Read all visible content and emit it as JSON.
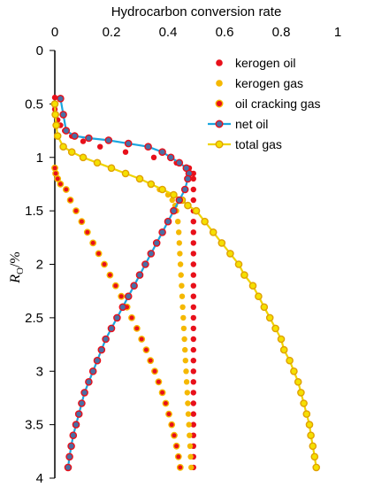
{
  "chart_data": {
    "type": "scatter",
    "title": "Hydrocarbon conversion rate",
    "ylabel": "Ro/%",
    "ylabel_parts": {
      "main": "R",
      "sub": "O",
      "unit": "/%"
    },
    "xlim": [
      0,
      1
    ],
    "ylim": [
      0,
      4
    ],
    "y_inverted": true,
    "x_axis_position": "top",
    "grid": false,
    "legend_position": "top-right",
    "xticks": [
      "0",
      "0.2",
      "0.4",
      "0.6",
      "0.8",
      "1"
    ],
    "yticks": [
      "0",
      "0.5",
      "1",
      "1.5",
      "2",
      "2.5",
      "3",
      "3.5",
      "4"
    ],
    "series": [
      {
        "name": "kerogen oil",
        "style": "markers",
        "marker_fill": "#e8101a",
        "marker_stroke": "#e8101a",
        "points": [
          [
            0.0,
            0.44
          ],
          [
            0.0,
            0.5
          ],
          [
            0.0,
            0.55
          ],
          [
            0.005,
            0.6
          ],
          [
            0.01,
            0.65
          ],
          [
            0.02,
            0.7
          ],
          [
            0.035,
            0.75
          ],
          [
            0.06,
            0.8
          ],
          [
            0.1,
            0.85
          ],
          [
            0.16,
            0.9
          ],
          [
            0.25,
            0.95
          ],
          [
            0.35,
            1.0
          ],
          [
            0.43,
            1.05
          ],
          [
            0.475,
            1.1
          ],
          [
            0.49,
            1.15
          ],
          [
            0.49,
            1.2
          ],
          [
            0.49,
            1.3
          ],
          [
            0.49,
            1.4
          ],
          [
            0.49,
            1.5
          ],
          [
            0.49,
            1.6
          ],
          [
            0.49,
            1.7
          ],
          [
            0.49,
            1.8
          ],
          [
            0.49,
            1.9
          ],
          [
            0.49,
            2.0
          ],
          [
            0.49,
            2.1
          ],
          [
            0.49,
            2.2
          ],
          [
            0.49,
            2.3
          ],
          [
            0.49,
            2.4
          ],
          [
            0.49,
            2.5
          ],
          [
            0.49,
            2.6
          ],
          [
            0.49,
            2.7
          ],
          [
            0.49,
            2.8
          ],
          [
            0.49,
            2.9
          ],
          [
            0.49,
            3.0
          ],
          [
            0.49,
            3.1
          ],
          [
            0.49,
            3.2
          ],
          [
            0.49,
            3.3
          ],
          [
            0.49,
            3.4
          ],
          [
            0.49,
            3.5
          ],
          [
            0.49,
            3.6
          ],
          [
            0.49,
            3.7
          ],
          [
            0.49,
            3.8
          ],
          [
            0.49,
            3.9
          ]
        ]
      },
      {
        "name": "kerogen gas",
        "style": "markers",
        "marker_fill": "#f5b800",
        "marker_stroke": "#f5b800",
        "points": [
          [
            0.0,
            0.5
          ],
          [
            0.002,
            0.6
          ],
          [
            0.005,
            0.7
          ],
          [
            0.01,
            0.8
          ],
          [
            0.03,
            0.9
          ],
          [
            0.06,
            0.95
          ],
          [
            0.1,
            1.0
          ],
          [
            0.15,
            1.05
          ],
          [
            0.2,
            1.1
          ],
          [
            0.25,
            1.15
          ],
          [
            0.3,
            1.2
          ],
          [
            0.34,
            1.25
          ],
          [
            0.37,
            1.3
          ],
          [
            0.4,
            1.35
          ],
          [
            0.415,
            1.4
          ],
          [
            0.425,
            1.45
          ],
          [
            0.43,
            1.5
          ],
          [
            0.435,
            1.6
          ],
          [
            0.438,
            1.7
          ],
          [
            0.44,
            1.8
          ],
          [
            0.442,
            1.9
          ],
          [
            0.444,
            2.0
          ],
          [
            0.446,
            2.1
          ],
          [
            0.448,
            2.2
          ],
          [
            0.45,
            2.3
          ],
          [
            0.452,
            2.4
          ],
          [
            0.454,
            2.5
          ],
          [
            0.456,
            2.6
          ],
          [
            0.458,
            2.7
          ],
          [
            0.46,
            2.8
          ],
          [
            0.462,
            2.9
          ],
          [
            0.464,
            3.0
          ],
          [
            0.466,
            3.1
          ],
          [
            0.468,
            3.2
          ],
          [
            0.47,
            3.3
          ],
          [
            0.472,
            3.4
          ],
          [
            0.474,
            3.5
          ],
          [
            0.476,
            3.6
          ],
          [
            0.478,
            3.7
          ],
          [
            0.48,
            3.8
          ],
          [
            0.482,
            3.9
          ]
        ]
      },
      {
        "name": "oil cracking gas",
        "style": "markers",
        "marker_fill": "#e8101a",
        "marker_stroke": "#f5b800",
        "points": [
          [
            0.0,
            1.1
          ],
          [
            0.003,
            1.15
          ],
          [
            0.01,
            1.2
          ],
          [
            0.02,
            1.25
          ],
          [
            0.04,
            1.3
          ],
          [
            0.055,
            1.4
          ],
          [
            0.075,
            1.5
          ],
          [
            0.095,
            1.6
          ],
          [
            0.115,
            1.7
          ],
          [
            0.135,
            1.8
          ],
          [
            0.155,
            1.9
          ],
          [
            0.175,
            2.0
          ],
          [
            0.195,
            2.1
          ],
          [
            0.215,
            2.2
          ],
          [
            0.235,
            2.3
          ],
          [
            0.255,
            2.4
          ],
          [
            0.272,
            2.5
          ],
          [
            0.29,
            2.6
          ],
          [
            0.307,
            2.7
          ],
          [
            0.323,
            2.8
          ],
          [
            0.338,
            2.9
          ],
          [
            0.353,
            3.0
          ],
          [
            0.367,
            3.1
          ],
          [
            0.38,
            3.2
          ],
          [
            0.392,
            3.3
          ],
          [
            0.403,
            3.4
          ],
          [
            0.413,
            3.5
          ],
          [
            0.422,
            3.6
          ],
          [
            0.43,
            3.7
          ],
          [
            0.437,
            3.8
          ],
          [
            0.443,
            3.9
          ]
        ]
      },
      {
        "name": "net oil",
        "style": "line+markers",
        "line_color": "#1aa6e0",
        "marker_fill": "#4a6fa5",
        "marker_stroke": "#e8101a",
        "points": [
          [
            0.02,
            0.45
          ],
          [
            0.03,
            0.6
          ],
          [
            0.04,
            0.75
          ],
          [
            0.07,
            0.8
          ],
          [
            0.12,
            0.82
          ],
          [
            0.19,
            0.84
          ],
          [
            0.26,
            0.87
          ],
          [
            0.33,
            0.9
          ],
          [
            0.38,
            0.95
          ],
          [
            0.41,
            1.0
          ],
          [
            0.44,
            1.05
          ],
          [
            0.465,
            1.1
          ],
          [
            0.475,
            1.15
          ],
          [
            0.47,
            1.2
          ],
          [
            0.46,
            1.3
          ],
          [
            0.44,
            1.4
          ],
          [
            0.42,
            1.5
          ],
          [
            0.4,
            1.6
          ],
          [
            0.38,
            1.7
          ],
          [
            0.36,
            1.8
          ],
          [
            0.34,
            1.9
          ],
          [
            0.32,
            2.0
          ],
          [
            0.3,
            2.1
          ],
          [
            0.28,
            2.2
          ],
          [
            0.26,
            2.3
          ],
          [
            0.24,
            2.4
          ],
          [
            0.22,
            2.5
          ],
          [
            0.2,
            2.6
          ],
          [
            0.18,
            2.7
          ],
          [
            0.165,
            2.8
          ],
          [
            0.15,
            2.9
          ],
          [
            0.135,
            3.0
          ],
          [
            0.12,
            3.1
          ],
          [
            0.105,
            3.2
          ],
          [
            0.095,
            3.3
          ],
          [
            0.085,
            3.4
          ],
          [
            0.075,
            3.5
          ],
          [
            0.065,
            3.6
          ],
          [
            0.058,
            3.7
          ],
          [
            0.052,
            3.8
          ],
          [
            0.047,
            3.9
          ]
        ]
      },
      {
        "name": "total gas",
        "style": "line+markers",
        "line_color": "#f0d400",
        "marker_fill": "#f5e000",
        "marker_stroke": "#e0a000",
        "points": [
          [
            0.0,
            0.5
          ],
          [
            0.002,
            0.6
          ],
          [
            0.005,
            0.7
          ],
          [
            0.01,
            0.8
          ],
          [
            0.03,
            0.9
          ],
          [
            0.06,
            0.95
          ],
          [
            0.1,
            1.0
          ],
          [
            0.15,
            1.05
          ],
          [
            0.2,
            1.1
          ],
          [
            0.25,
            1.15
          ],
          [
            0.3,
            1.2
          ],
          [
            0.34,
            1.25
          ],
          [
            0.38,
            1.3
          ],
          [
            0.42,
            1.35
          ],
          [
            0.45,
            1.4
          ],
          [
            0.47,
            1.45
          ],
          [
            0.5,
            1.5
          ],
          [
            0.53,
            1.6
          ],
          [
            0.56,
            1.7
          ],
          [
            0.59,
            1.8
          ],
          [
            0.62,
            1.9
          ],
          [
            0.65,
            2.0
          ],
          [
            0.67,
            2.1
          ],
          [
            0.7,
            2.2
          ],
          [
            0.72,
            2.3
          ],
          [
            0.74,
            2.4
          ],
          [
            0.76,
            2.5
          ],
          [
            0.78,
            2.6
          ],
          [
            0.8,
            2.7
          ],
          [
            0.81,
            2.8
          ],
          [
            0.83,
            2.9
          ],
          [
            0.845,
            3.0
          ],
          [
            0.86,
            3.1
          ],
          [
            0.87,
            3.2
          ],
          [
            0.88,
            3.3
          ],
          [
            0.89,
            3.4
          ],
          [
            0.9,
            3.5
          ],
          [
            0.905,
            3.6
          ],
          [
            0.912,
            3.7
          ],
          [
            0.918,
            3.8
          ],
          [
            0.924,
            3.9
          ]
        ]
      }
    ]
  }
}
